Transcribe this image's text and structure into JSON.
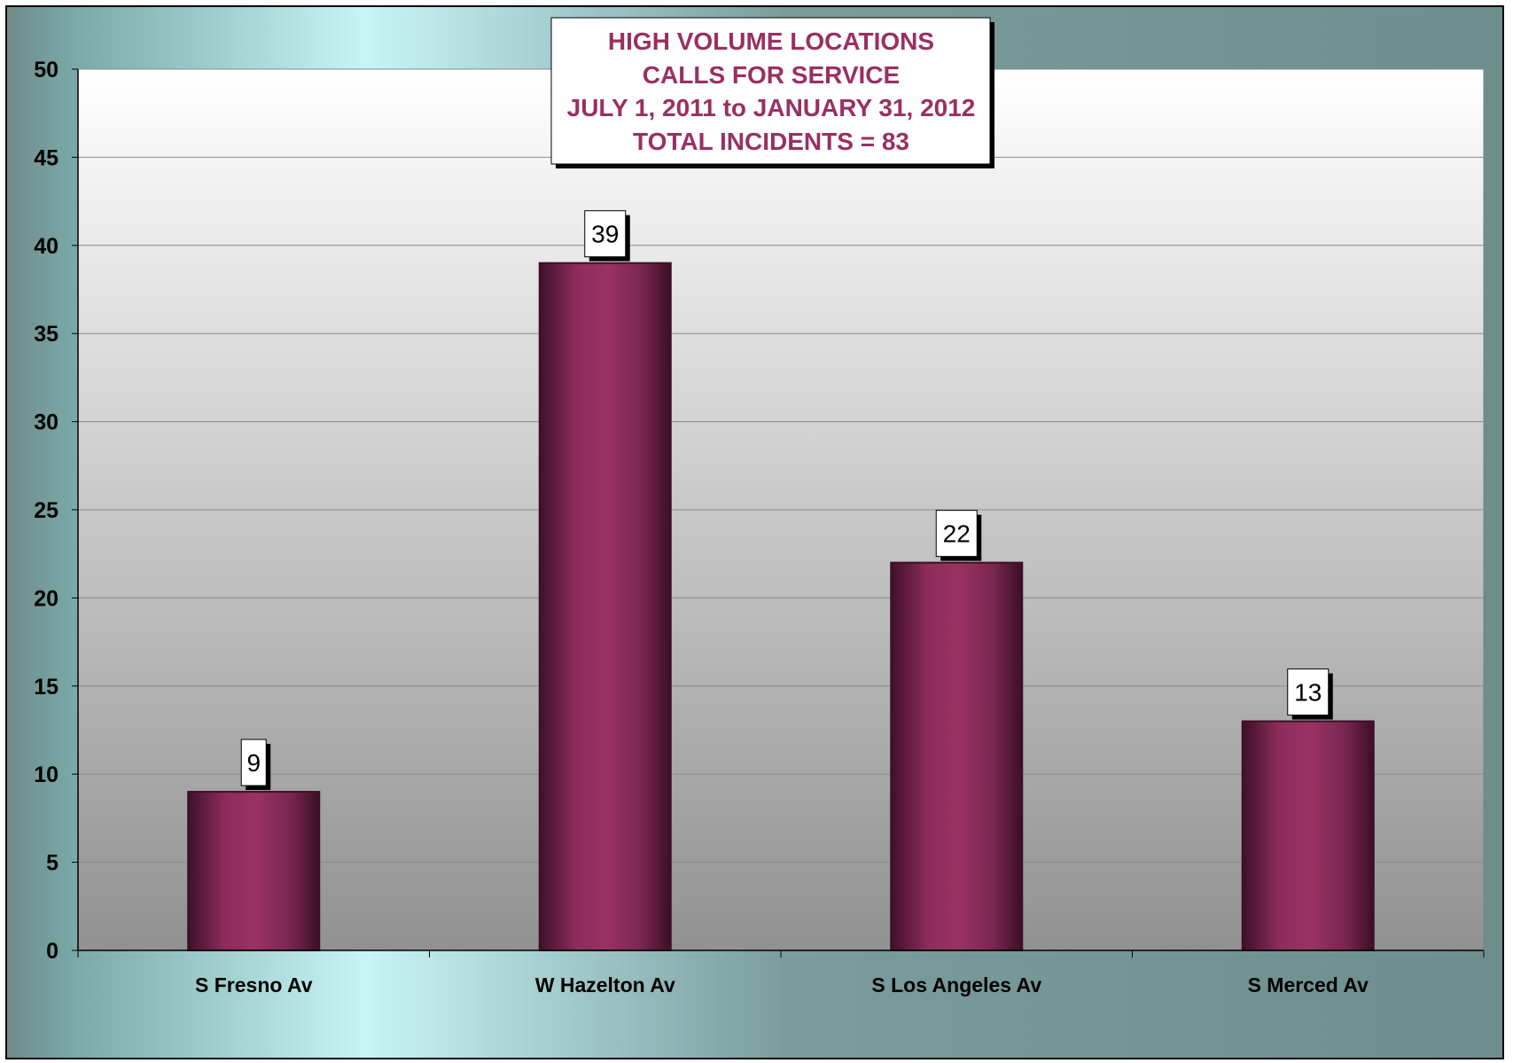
{
  "chart_data": {
    "type": "bar",
    "title_lines": [
      "HIGH VOLUME LOCATIONS",
      "CALLS FOR SERVICE",
      "JULY 1, 2011 to JANUARY 31, 2012",
      "TOTAL INCIDENTS = 83"
    ],
    "categories": [
      "S Fresno Av",
      "W Hazelton Av",
      "S Los Angeles Av",
      "S Merced Av"
    ],
    "values": [
      9,
      39,
      22,
      13
    ],
    "data_labels": [
      "9",
      "39",
      "22",
      "13"
    ],
    "ylim": [
      0,
      50
    ],
    "y_ticks": [
      "0",
      "5",
      "10",
      "15",
      "20",
      "25",
      "30",
      "35",
      "40",
      "45",
      "50"
    ],
    "xlabel": "",
    "ylabel": "",
    "grid": true,
    "legend": "none",
    "colors": {
      "bar": "#97305f",
      "bar_edge": "#3c0f24",
      "title": "#9a2f62",
      "plot_top": "#ffffff",
      "plot_bottom": "#919191"
    }
  }
}
